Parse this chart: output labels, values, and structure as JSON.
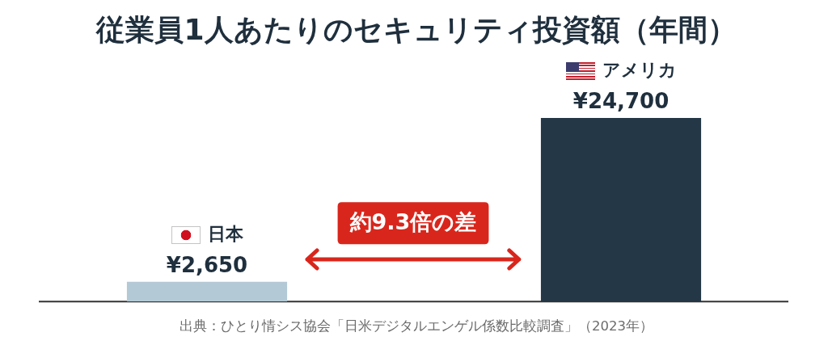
{
  "chart_data": {
    "type": "bar",
    "title": "従業員1人あたりのセキュリティ投資額（年間）",
    "categories": [
      "日本",
      "アメリカ"
    ],
    "values": [
      2650,
      24700
    ],
    "colors": [
      "#b3c9d5",
      "#243746"
    ],
    "value_labels": [
      "¥2,650",
      "¥24,700"
    ],
    "annotations": [
      "約9.3倍の差",
      "出典：ひとり情シス協会「日米デジタルエンゲル係数比較調査」（2023年）"
    ]
  }
}
